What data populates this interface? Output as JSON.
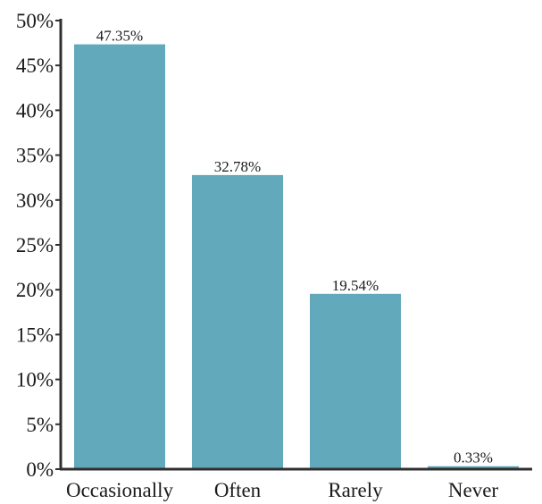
{
  "chart_data": {
    "type": "bar",
    "title": "",
    "xlabel": "",
    "ylabel": "",
    "categories": [
      "Occasionally",
      "Often",
      "Rarely",
      "Never"
    ],
    "values": [
      47.35,
      32.78,
      19.54,
      0.33
    ],
    "data_labels": [
      "47.35%",
      "32.78%",
      "19.54%",
      "0.33%"
    ],
    "ylim": [
      0,
      50
    ],
    "y_ticks": [
      0,
      5,
      10,
      15,
      20,
      25,
      30,
      35,
      40,
      45,
      50
    ],
    "y_tick_labels": [
      "0%",
      "5%",
      "10%",
      "15%",
      "20%",
      "25%",
      "30%",
      "35%",
      "40%",
      "45%",
      "50%"
    ],
    "grid": false,
    "legend": "none",
    "colors": {
      "bar": "#62a9bb",
      "axis": "#2f2f2f",
      "text": "#1a1a1a"
    }
  }
}
